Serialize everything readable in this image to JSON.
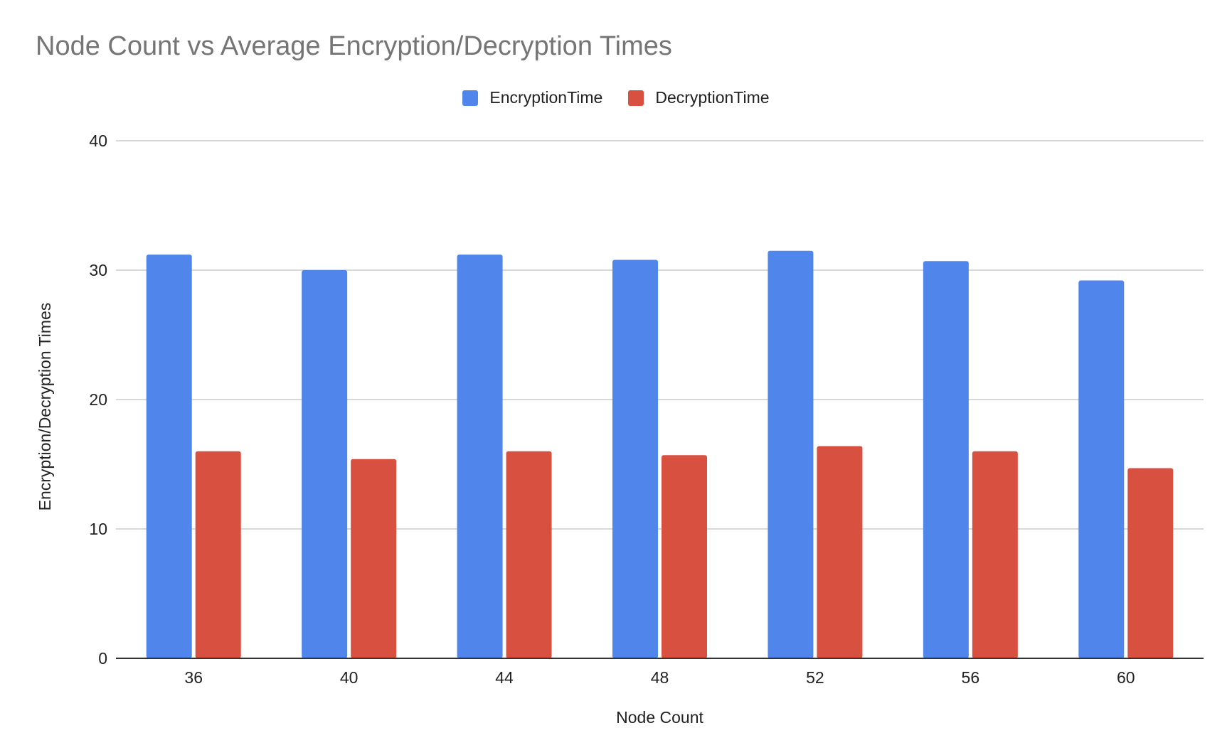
{
  "chart_data": {
    "type": "bar",
    "title": "Node Count vs Average Encryption/Decryption Times",
    "xlabel": "Node Count",
    "ylabel": "Encryption/Decryption Times",
    "categories": [
      "36",
      "40",
      "44",
      "48",
      "52",
      "56",
      "60"
    ],
    "series": [
      {
        "name": "EncryptionTime",
        "color": "#5086EC",
        "values": [
          31.2,
          30.0,
          31.2,
          30.8,
          31.5,
          30.7,
          29.2
        ]
      },
      {
        "name": "DecryptionTime",
        "color": "#D85140",
        "values": [
          16.0,
          15.4,
          16.0,
          15.7,
          16.4,
          16.0,
          14.7
        ]
      }
    ],
    "ylim": [
      0,
      40
    ],
    "yticks": [
      0,
      10,
      20,
      30,
      40
    ],
    "grid": true,
    "legend": "top-center"
  }
}
